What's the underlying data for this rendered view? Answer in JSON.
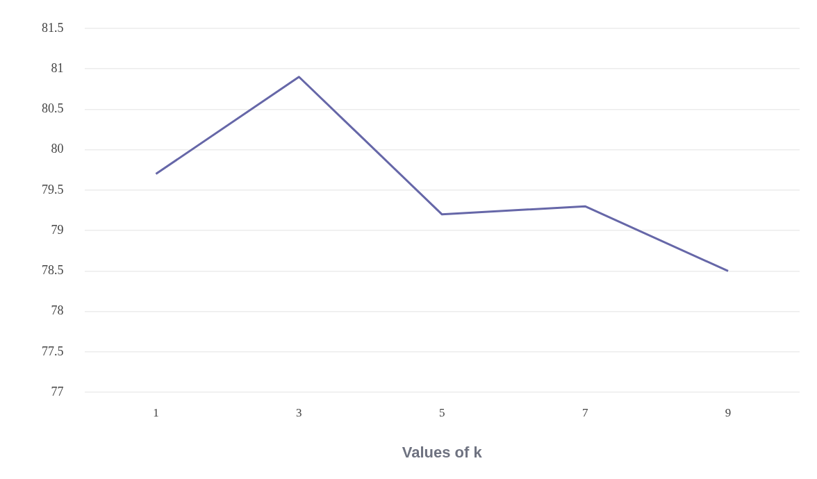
{
  "chart_data": {
    "type": "line",
    "xlabel": "Values of k",
    "categories": [
      "1",
      "3",
      "5",
      "7",
      "9"
    ],
    "series": [
      {
        "color": "#6667a8",
        "values": [
          79.7,
          80.9,
          79.2,
          79.3,
          78.5
        ]
      }
    ],
    "ylim": [
      77,
      81.5
    ],
    "yticks": [
      77,
      77.5,
      78,
      78.5,
      79,
      79.5,
      80,
      80.5,
      81,
      81.5
    ],
    "grid": "y",
    "legend": false,
    "marker": "none",
    "line_style": "solid"
  }
}
